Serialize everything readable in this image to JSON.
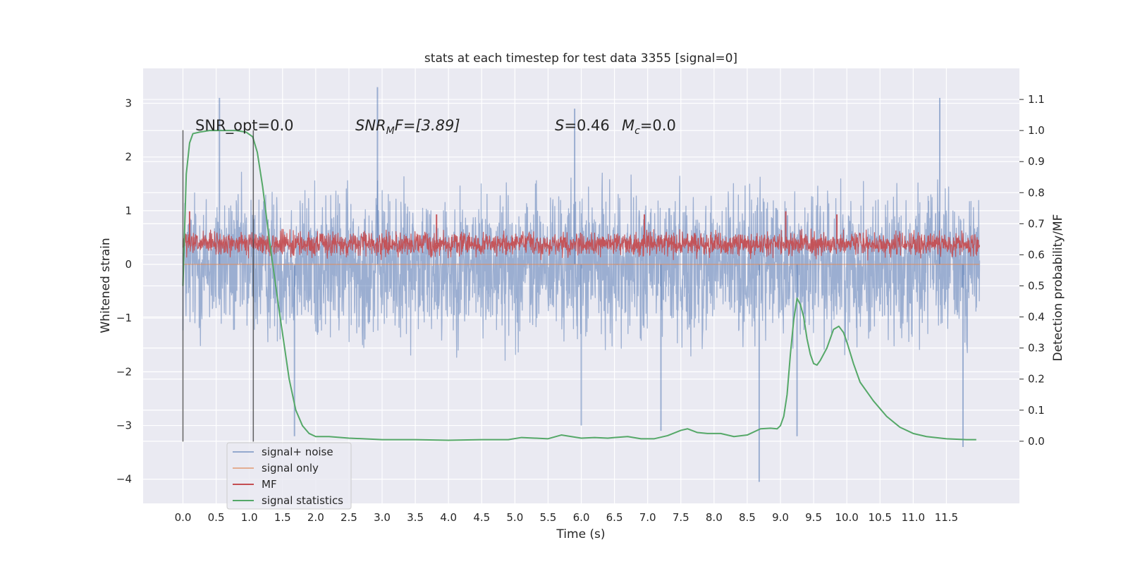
{
  "chart_data": {
    "type": "line",
    "title": "stats at each timestep for test data 3355 [signal=0]",
    "xlabel": "Time (s)",
    "ylabel": "Whitened strain",
    "y2label": "Detection probability/MF",
    "xlim": [
      -0.6,
      12.6
    ],
    "ylim": [
      -4.45,
      3.65
    ],
    "y2lim": [
      -0.2,
      1.2
    ],
    "x_ticks": [
      0.0,
      0.5,
      1.0,
      1.5,
      2.0,
      2.5,
      3.0,
      3.5,
      4.0,
      4.5,
      5.0,
      5.5,
      6.0,
      6.5,
      7.0,
      7.5,
      8.0,
      8.5,
      9.0,
      9.5,
      10.0,
      10.5,
      11.0,
      11.5
    ],
    "x_tick_labels": [
      "0.0",
      "0.5",
      "1.0",
      "1.5",
      "2.0",
      "2.5",
      "3.0",
      "3.5",
      "4.0",
      "4.5",
      "5.0",
      "5.5",
      "6.0",
      "6.5",
      "7.0",
      "7.5",
      "8.0",
      "8.5",
      "9.0",
      "9.5",
      "10.0",
      "10.5",
      "11.0",
      "11.5"
    ],
    "y_ticks": [
      -4,
      -3,
      -2,
      -1,
      0,
      1,
      2,
      3
    ],
    "y_tick_labels": [
      "−4",
      "−3",
      "−2",
      "−1",
      "0",
      "1",
      "2",
      "3"
    ],
    "y2_ticks": [
      0.0,
      0.1,
      0.2,
      0.3,
      0.4,
      0.5,
      0.6,
      0.7,
      0.8,
      0.9,
      1.0,
      1.1
    ],
    "y2_tick_labels": [
      "0.0",
      "0.1",
      "0.2",
      "0.3",
      "0.4",
      "0.5",
      "0.6",
      "0.7",
      "0.8",
      "0.9",
      "1.0",
      "1.1"
    ],
    "grid": true,
    "legend_position": "lower-left",
    "annotations": {
      "snr_opt": "SNR_opt=0.0",
      "snr_mf_name": "SNR",
      "snr_mf_sub": "M",
      "snr_mf_rest": "F=[3.89]",
      "s_name": "S",
      "s_rest": "=0.46",
      "mc_name": "M",
      "mc_sub": "c",
      "mc_rest": "=0.0"
    },
    "vlines": [
      {
        "x": 0.0,
        "y_range": [
          -3.3,
          2.5
        ]
      },
      {
        "x": 1.06,
        "y_range": [
          -3.3,
          2.5
        ]
      }
    ],
    "series": [
      {
        "name": "signal+ noise",
        "color": "#4c72b0",
        "axis": "left",
        "style": "noise",
        "x_range": [
          0.0,
          12.0
        ],
        "envelope": {
          "lower_typical": -1.6,
          "upper_typical": 1.6
        },
        "notable_extremes": [
          {
            "x": 0.55,
            "y": 3.1
          },
          {
            "x": 2.93,
            "y": 3.3
          },
          {
            "x": 5.9,
            "y": 2.9
          },
          {
            "x": 11.4,
            "y": 3.1
          },
          {
            "x": 8.68,
            "y": -4.05
          },
          {
            "x": 11.75,
            "y": -3.4
          },
          {
            "x": 1.68,
            "y": -3.2
          },
          {
            "x": 9.25,
            "y": -3.2
          },
          {
            "x": 7.2,
            "y": -3.1
          },
          {
            "x": 6.0,
            "y": -3.0
          }
        ]
      },
      {
        "name": "signal only",
        "color": "#dd8452",
        "axis": "left",
        "style": "line",
        "x": [
          0.0,
          12.0
        ],
        "values": [
          0.0,
          0.0
        ]
      },
      {
        "name": "MF",
        "color": "#c44e52",
        "axis": "right",
        "style": "noise",
        "x_range": [
          0.0,
          12.0
        ],
        "envelope": {
          "lower_typical": 0.59,
          "upper_typical": 0.68
        },
        "notable_extremes": [
          {
            "x": 0.1,
            "y": 0.74
          },
          {
            "x": 9.08,
            "y": 0.74
          },
          {
            "x": 3.82,
            "y": 0.73
          },
          {
            "x": 6.95,
            "y": 0.73
          },
          {
            "x": 9.85,
            "y": 0.73
          }
        ]
      },
      {
        "name": "signal statistics",
        "color": "#55a868",
        "axis": "right",
        "style": "line",
        "x": [
          0.0,
          0.05,
          0.1,
          0.15,
          0.25,
          0.4,
          0.6,
          0.8,
          0.95,
          1.05,
          1.12,
          1.2,
          1.3,
          1.45,
          1.6,
          1.7,
          1.8,
          1.9,
          2.0,
          2.2,
          2.5,
          3.0,
          3.5,
          4.0,
          4.5,
          4.9,
          5.1,
          5.3,
          5.5,
          5.7,
          5.85,
          6.0,
          6.2,
          6.4,
          6.5,
          6.7,
          6.9,
          7.1,
          7.3,
          7.5,
          7.6,
          7.75,
          7.9,
          8.1,
          8.3,
          8.5,
          8.7,
          8.85,
          8.95,
          9.0,
          9.05,
          9.1,
          9.15,
          9.2,
          9.25,
          9.3,
          9.35,
          9.4,
          9.45,
          9.5,
          9.55,
          9.6,
          9.7,
          9.8,
          9.88,
          9.95,
          10.0,
          10.1,
          10.2,
          10.4,
          10.6,
          10.8,
          11.0,
          11.2,
          11.5,
          11.8,
          11.95
        ],
        "values": [
          0.5,
          0.86,
          0.96,
          0.99,
          0.995,
          1.0,
          1.0,
          1.0,
          0.995,
          0.98,
          0.93,
          0.82,
          0.65,
          0.42,
          0.2,
          0.1,
          0.05,
          0.025,
          0.015,
          0.015,
          0.01,
          0.005,
          0.005,
          0.003,
          0.005,
          0.005,
          0.012,
          0.01,
          0.008,
          0.02,
          0.015,
          0.01,
          0.012,
          0.01,
          0.012,
          0.015,
          0.008,
          0.008,
          0.018,
          0.035,
          0.04,
          0.028,
          0.025,
          0.025,
          0.015,
          0.02,
          0.04,
          0.042,
          0.04,
          0.05,
          0.08,
          0.15,
          0.28,
          0.39,
          0.46,
          0.44,
          0.4,
          0.33,
          0.28,
          0.25,
          0.245,
          0.26,
          0.3,
          0.36,
          0.37,
          0.35,
          0.32,
          0.25,
          0.19,
          0.13,
          0.08,
          0.045,
          0.025,
          0.015,
          0.008,
          0.005,
          0.005
        ]
      }
    ]
  }
}
